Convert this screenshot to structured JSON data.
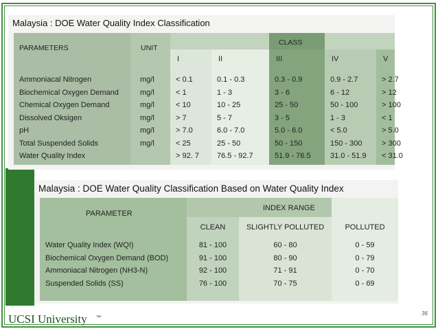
{
  "table1": {
    "title": "Malaysia : DOE  Water Quality Index Classification",
    "header": {
      "parameters": "PARAMETERS",
      "unit": "UNIT",
      "class": "CLASS",
      "classes": [
        "I",
        "II",
        "III",
        "IV",
        "V"
      ]
    },
    "rows": [
      [
        "Ammoniacal Nitrogen",
        "mg/l",
        "< 0.1",
        "0.1 -  0.3",
        "0.3 - 0.9",
        "0.9 - 2.7",
        "> 2.7"
      ],
      [
        "Biochemical Oxygen Demand",
        "mg/l",
        "< 1",
        "1 - 3",
        "3 - 6",
        "6 - 12",
        "> 12"
      ],
      [
        "Chemical Oxygen Demand",
        "mg/l",
        "< 10",
        "10 - 25",
        "25 - 50",
        "50 - 100",
        "> 100"
      ],
      [
        "Dissolved Oksigen",
        "mg/l",
        "> 7",
        "5 - 7",
        "3 - 5",
        "1 - 3",
        "< 1"
      ],
      [
        "pH",
        "mg/l",
        "> 7.0",
        "6.0 - 7.0",
        "5.0 - 6.0",
        "< 5.0",
        "> 5.0"
      ],
      [
        "Total Suspended Solids",
        "mg/l",
        "< 25",
        "25 - 50",
        "50 - 150",
        "150 - 300",
        "> 300"
      ],
      [
        "Water Quality Index",
        null,
        "> 92. 7",
        "76.5 - 92.7",
        "51.9 - 76.5",
        "31.0 - 51.9",
        "< 31.0"
      ]
    ]
  },
  "table2": {
    "title": "Malaysia : DOE Water Quality Classification Based on Water Quality Index",
    "header": {
      "parameter": "PARAMETER",
      "range": "INDEX RANGE",
      "classes": [
        "CLEAN",
        "SLIGHTLY POLLUTED",
        "POLLUTED"
      ]
    },
    "rows": [
      [
        "Water Quality Index (WQI)",
        "81 - 100",
        "60 - 80",
        "0 - 59"
      ],
      [
        "Biochemical Oxygen Demand (BOD)",
        "91 - 100",
        "80 - 90",
        "0 - 79"
      ],
      [
        "Ammoniacal Nitrogen (NH3-N)",
        "92 - 100",
        "71 - 91",
        "0 - 70"
      ],
      [
        "Suspended Solids (SS)",
        "76 - 100",
        "70 - 75",
        "0 - 69"
      ]
    ]
  },
  "footer": {
    "logo": "UCSI University",
    "trademark": "™",
    "page": "36"
  }
}
